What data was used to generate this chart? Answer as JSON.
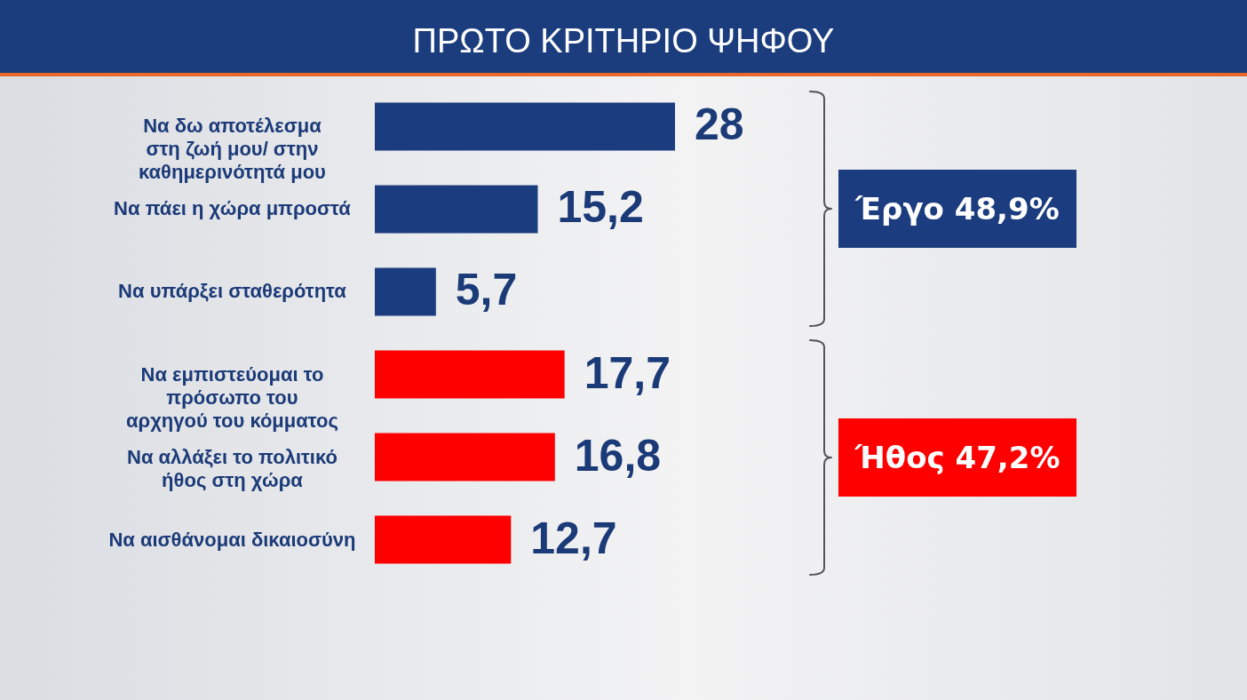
{
  "chart_data": {
    "type": "bar",
    "title": "ΠΡΩΤΟ ΚΡΙΤΗΡΙΟ ΨΗΦΟΥ",
    "orientation": "horizontal",
    "categories": [
      "Να δω αποτέλεσμα στη ζωή μου/ στην καθημερινότητά μου",
      "Να πάει η χώρα μπροστά",
      "Να υπάρξει σταθερότητα",
      "Να εμπιστεύομαι το πρόσωπο του αρχηγού του κόμματος",
      "Να αλλάξει το πολιτικό ήθος στη χώρα",
      "Να αισθάνομαι δικαιοσύνη"
    ],
    "values": [
      28,
      15.2,
      5.7,
      17.7,
      16.8,
      12.7
    ],
    "colors": [
      "#1b3c7e",
      "#1b3c7e",
      "#1b3c7e",
      "#fe0000",
      "#fe0000",
      "#fe0000"
    ],
    "value_labels": [
      "28",
      "15,2",
      "5,7",
      "17,7",
      "16,8",
      "12,7"
    ],
    "tick_labels": "y",
    "annotations": [
      "Έργο 48,9%",
      "Ήθος 47,2%"
    ]
  }
}
